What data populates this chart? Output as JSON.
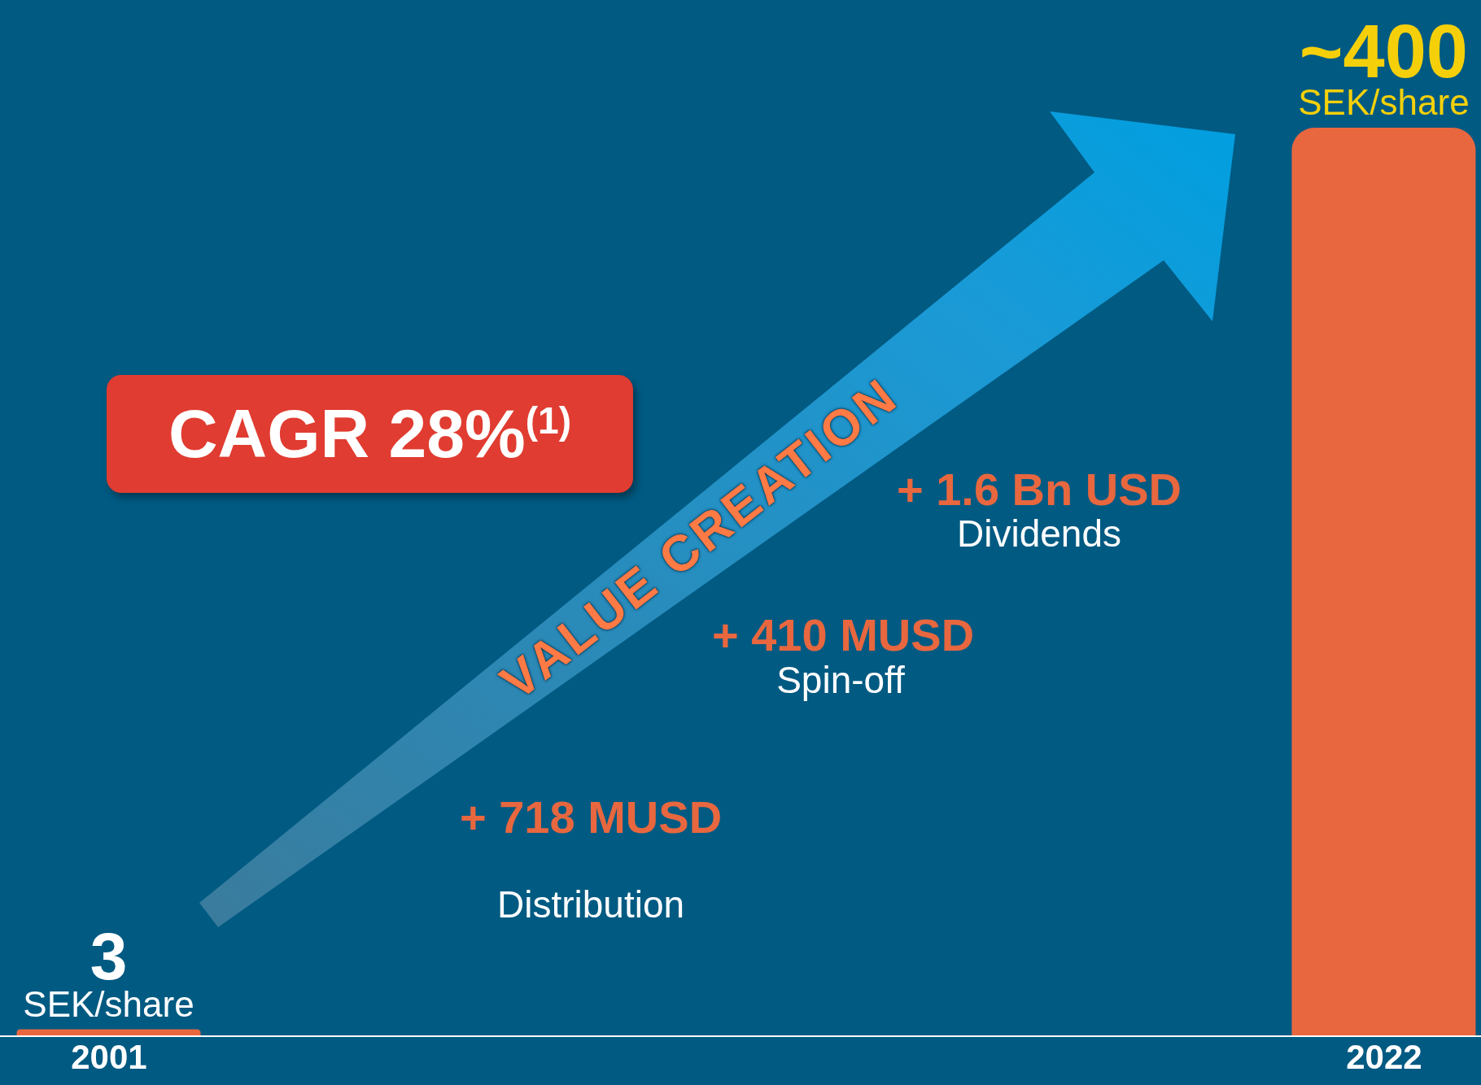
{
  "chart_data": {
    "type": "bar",
    "categories": [
      "2001",
      "2022"
    ],
    "values": [
      3,
      400
    ],
    "color": "#e8673f",
    "value_labels": [
      "3",
      "~400"
    ],
    "ylabel": "SEK/share",
    "grid": false,
    "legend": false,
    "annotations": [
      "CAGR 28%$^{(1)}$",
      "VALUE CREATION",
      "+ 718 MUSD",
      "Distribution",
      "+ 410 MUSD",
      "Spin-off",
      "+ 1.6 Bn USD",
      "Dividends"
    ]
  }
}
